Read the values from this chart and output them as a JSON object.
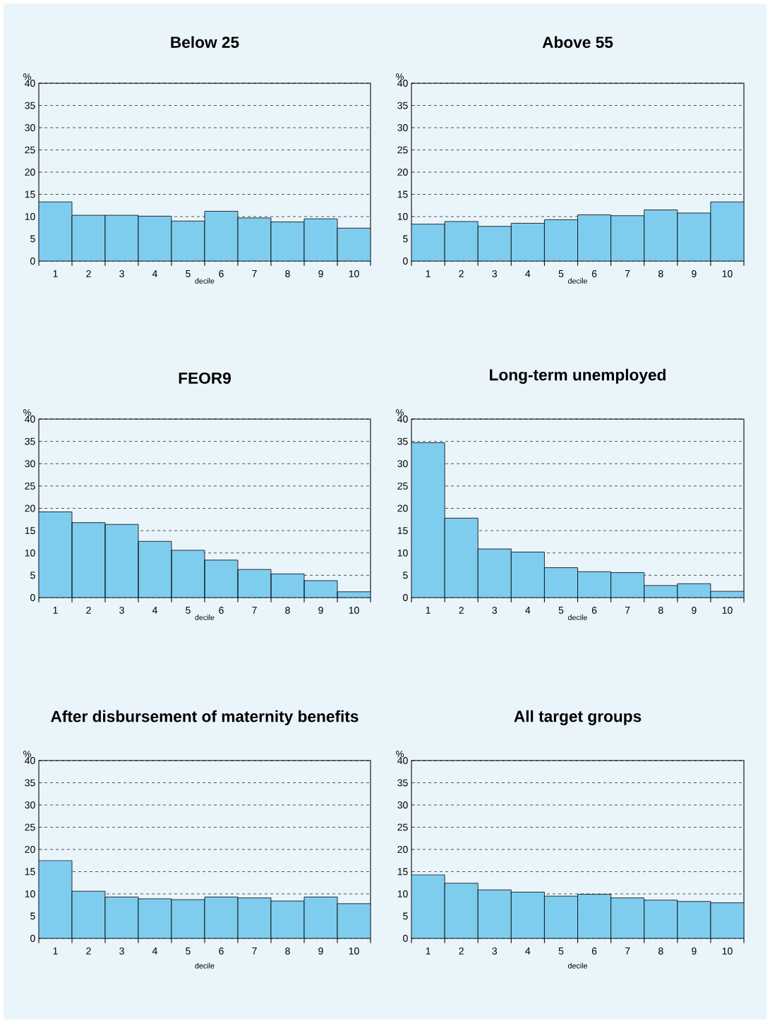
{
  "chart_data": [
    {
      "type": "bar",
      "title": "Below 25",
      "xlabel": "decile",
      "ylabel": "%",
      "categories": [
        "1",
        "2",
        "3",
        "4",
        "5",
        "6",
        "7",
        "8",
        "9",
        "10"
      ],
      "values": [
        13.3,
        10.3,
        10.3,
        10.1,
        9.0,
        11.2,
        9.7,
        8.8,
        9.5,
        7.4
      ],
      "color": "#7fcdee",
      "ylim": [
        0,
        40
      ],
      "yticks": [
        0,
        5,
        10,
        15,
        20,
        25,
        30,
        35,
        40
      ],
      "grid": "y"
    },
    {
      "type": "bar",
      "title": "Above 55",
      "xlabel": "decile",
      "ylabel": "%",
      "categories": [
        "1",
        "2",
        "3",
        "4",
        "5",
        "6",
        "7",
        "8",
        "9",
        "10"
      ],
      "values": [
        8.3,
        8.9,
        7.8,
        8.5,
        9.3,
        10.4,
        10.2,
        11.5,
        10.8,
        13.3
      ],
      "color": "#7fcdee",
      "ylim": [
        0,
        40
      ],
      "yticks": [
        0,
        5,
        10,
        15,
        20,
        25,
        30,
        35,
        40
      ],
      "grid": "y"
    },
    {
      "type": "bar",
      "title": "FEOR9",
      "xlabel": "decile",
      "ylabel": "%",
      "categories": [
        "1",
        "2",
        "3",
        "4",
        "5",
        "6",
        "7",
        "8",
        "9",
        "10"
      ],
      "values": [
        19.2,
        16.8,
        16.4,
        12.6,
        10.6,
        8.4,
        6.3,
        5.3,
        3.8,
        1.3
      ],
      "color": "#7fcdee",
      "ylim": [
        0,
        40
      ],
      "yticks": [
        0,
        5,
        10,
        15,
        20,
        25,
        30,
        35,
        40
      ],
      "grid": "y"
    },
    {
      "type": "bar",
      "title": "Long-term unemployed",
      "xlabel": "decile",
      "ylabel": "%",
      "categories": [
        "1",
        "2",
        "3",
        "4",
        "5",
        "6",
        "7",
        "8",
        "9",
        "10"
      ],
      "values": [
        34.7,
        17.8,
        10.9,
        10.2,
        6.7,
        5.8,
        5.6,
        2.7,
        3.1,
        1.4
      ],
      "color": "#7fcdee",
      "ylim": [
        0,
        40
      ],
      "yticks": [
        0,
        5,
        10,
        15,
        20,
        25,
        30,
        35,
        40
      ],
      "grid": "y"
    },
    {
      "type": "bar",
      "title": "After disbursement of maternity benefits",
      "xlabel": "decile",
      "ylabel": "%",
      "categories": [
        "1",
        "2",
        "3",
        "4",
        "5",
        "6",
        "7",
        "8",
        "9",
        "10"
      ],
      "values": [
        17.5,
        10.6,
        9.3,
        8.9,
        8.7,
        9.3,
        9.1,
        8.4,
        9.3,
        7.8
      ],
      "color": "#7fcdee",
      "ylim": [
        0,
        40
      ],
      "yticks": [
        0,
        5,
        10,
        15,
        20,
        25,
        30,
        35,
        40
      ],
      "grid": "y"
    },
    {
      "type": "bar",
      "title": "All target groups",
      "xlabel": "decile",
      "ylabel": "%",
      "categories": [
        "1",
        "2",
        "3",
        "4",
        "5",
        "6",
        "7",
        "8",
        "9",
        "10"
      ],
      "values": [
        14.3,
        12.4,
        10.9,
        10.4,
        9.5,
        9.9,
        9.1,
        8.6,
        8.3,
        8.0
      ],
      "color": "#7fcdee",
      "ylim": [
        0,
        40
      ],
      "yticks": [
        0,
        5,
        10,
        15,
        20,
        25,
        30,
        35,
        40
      ],
      "grid": "y"
    }
  ]
}
